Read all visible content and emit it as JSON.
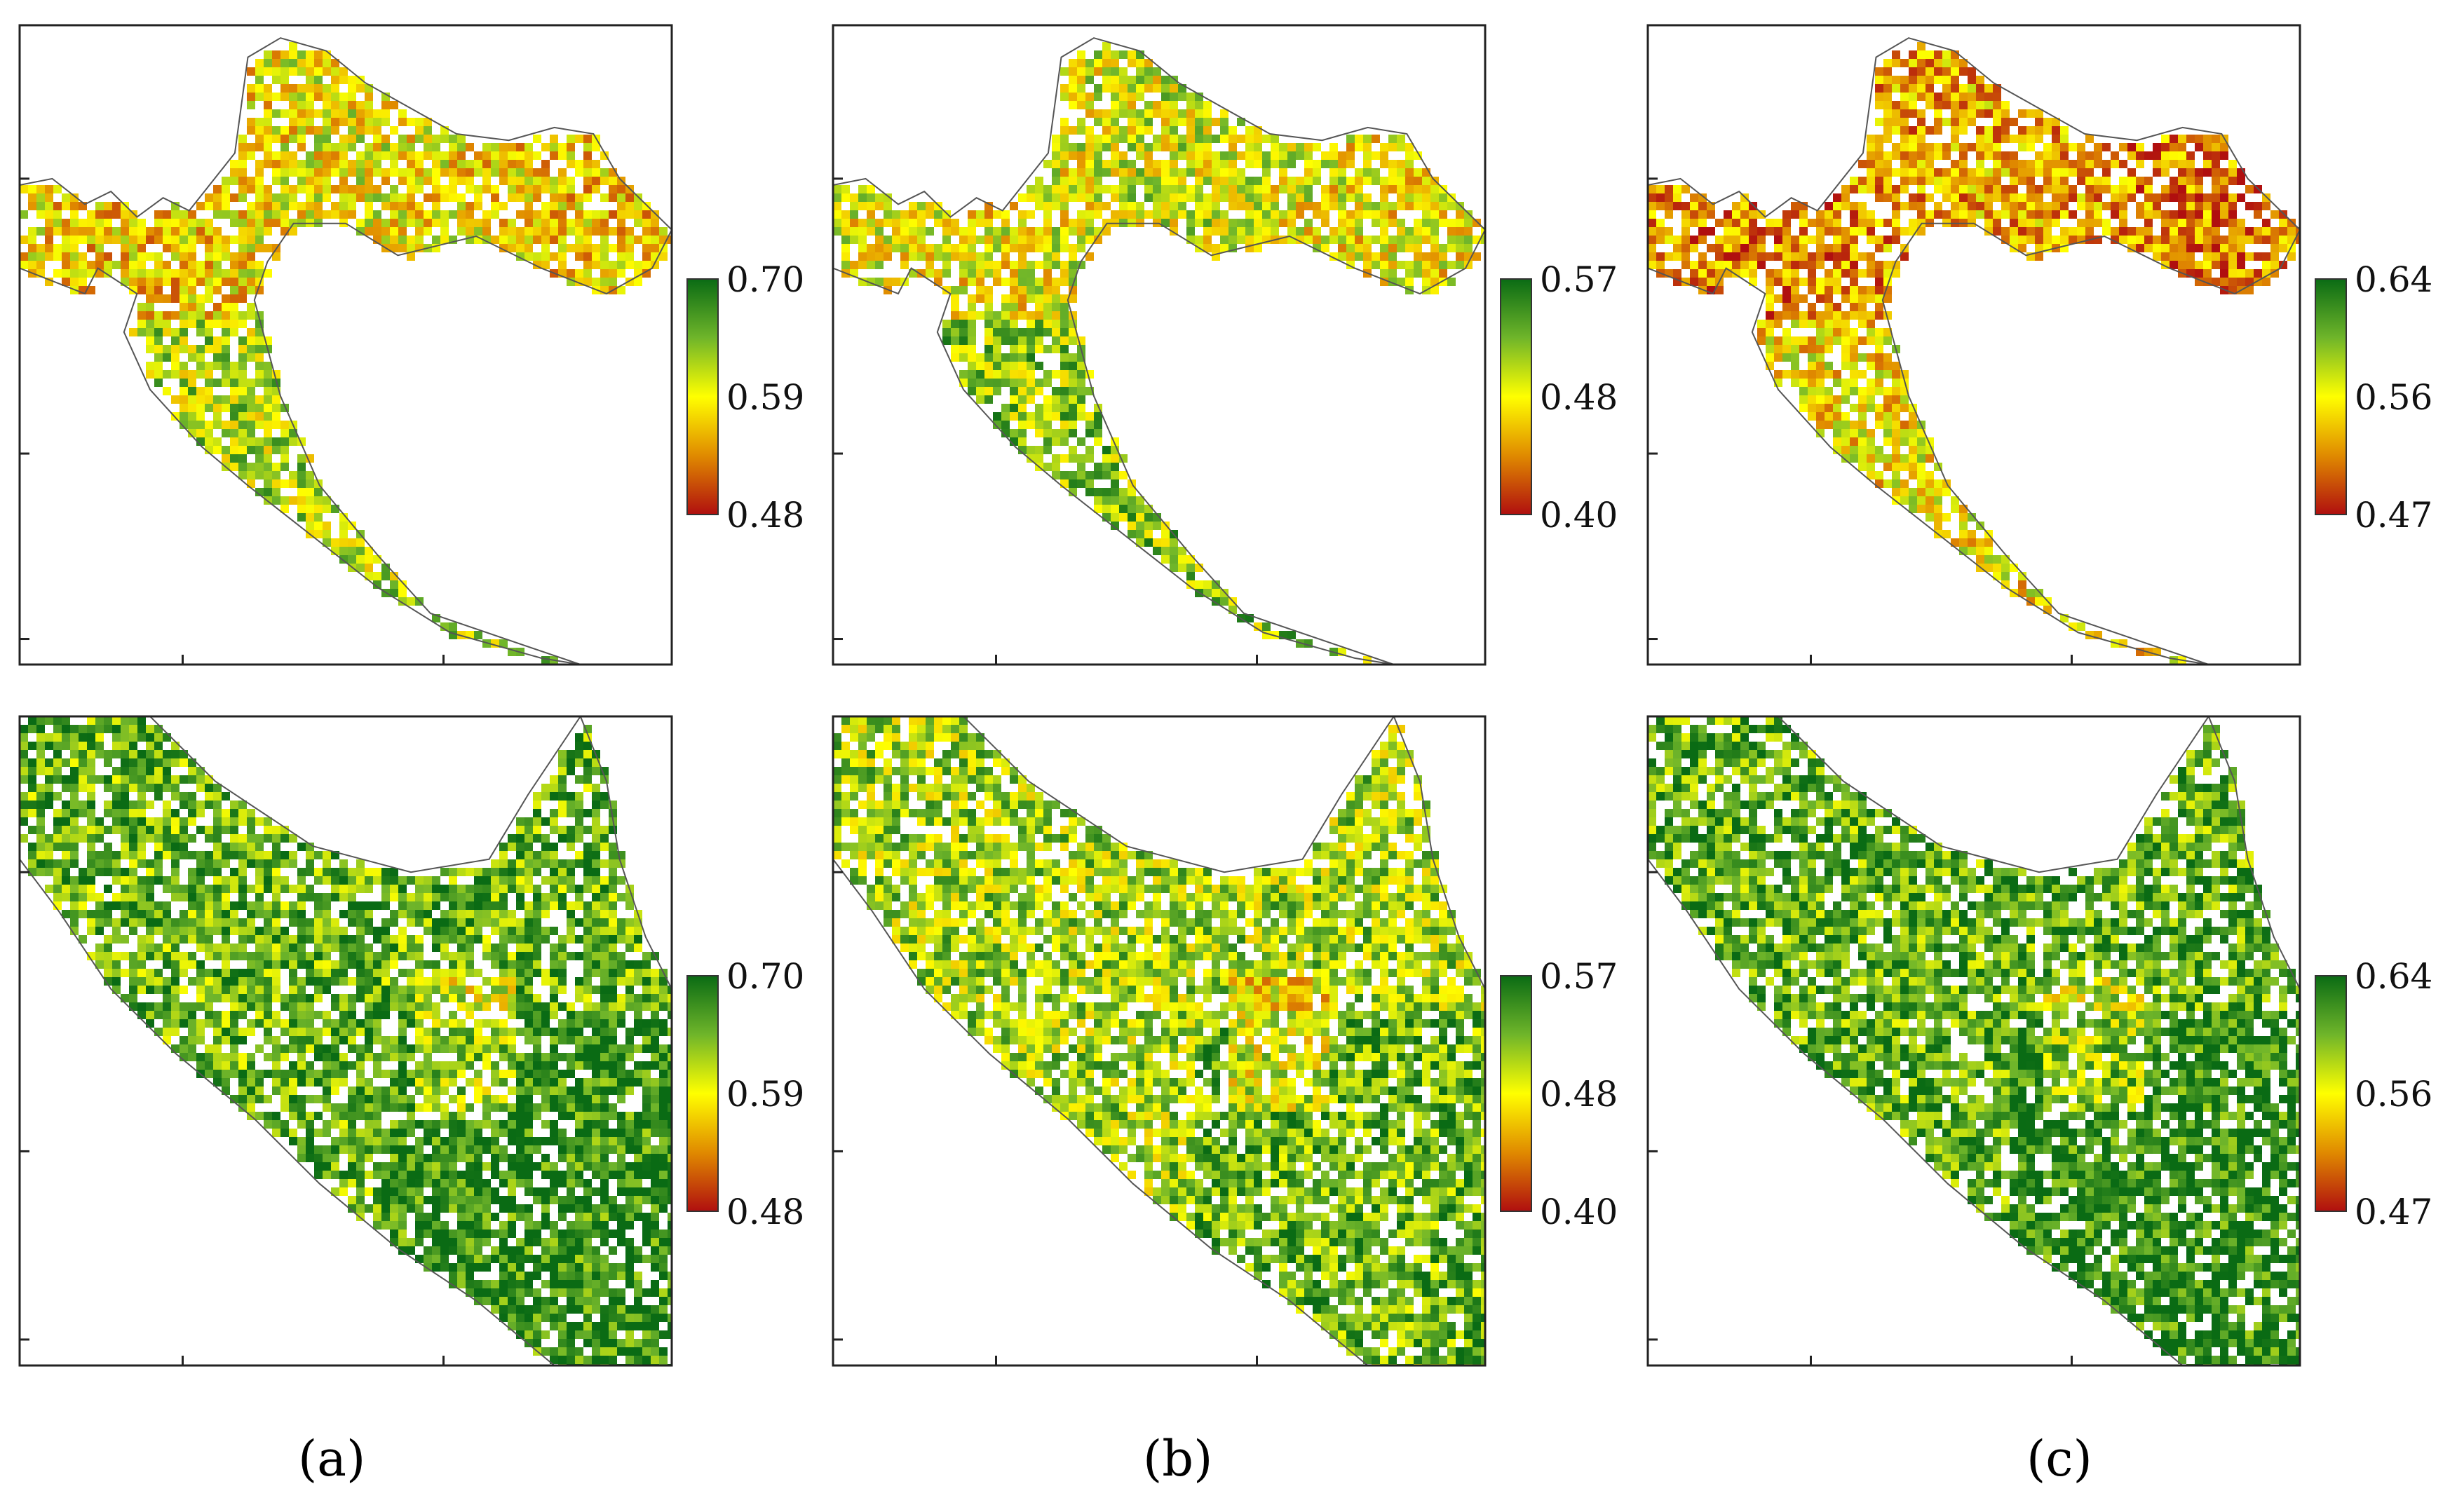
{
  "figure": {
    "panels": [
      {
        "id": "a",
        "label": "(a)",
        "maps": [
          {
            "row": "top",
            "region": "croatia-full",
            "colorbar": {
              "max": "0.70",
              "mid": "0.59",
              "min": "0.48"
            }
          },
          {
            "row": "bottom",
            "region": "dalmatia-zoom",
            "colorbar": {
              "max": "0.70",
              "mid": "0.59",
              "min": "0.48"
            }
          }
        ]
      },
      {
        "id": "b",
        "label": "(b)",
        "maps": [
          {
            "row": "top",
            "region": "croatia-full",
            "colorbar": {
              "max": "0.57",
              "mid": "0.48",
              "min": "0.40"
            }
          },
          {
            "row": "bottom",
            "region": "dalmatia-zoom",
            "colorbar": {
              "max": "0.57",
              "mid": "0.48",
              "min": "0.40"
            }
          }
        ]
      },
      {
        "id": "c",
        "label": "(c)",
        "maps": [
          {
            "row": "top",
            "region": "croatia-full",
            "colorbar": {
              "max": "0.64",
              "mid": "0.56",
              "min": "0.47"
            }
          },
          {
            "row": "bottom",
            "region": "dalmatia-zoom",
            "colorbar": {
              "max": "0.64",
              "mid": "0.56",
              "min": "0.47"
            }
          }
        ]
      }
    ],
    "colors": {
      "high": "#0a6b14",
      "upper": "#6fb52a",
      "mid": "#ffff00",
      "lower": "#e08a00",
      "low": "#b00f0f",
      "coastline": "#555555",
      "frame": "#222222"
    },
    "tone_bias": {
      "a": {
        "top": 0.45,
        "bottom": 0.78
      },
      "b": {
        "top": 0.52,
        "bottom": 0.66
      },
      "c": {
        "top": 0.28,
        "bottom": 0.8
      }
    }
  }
}
